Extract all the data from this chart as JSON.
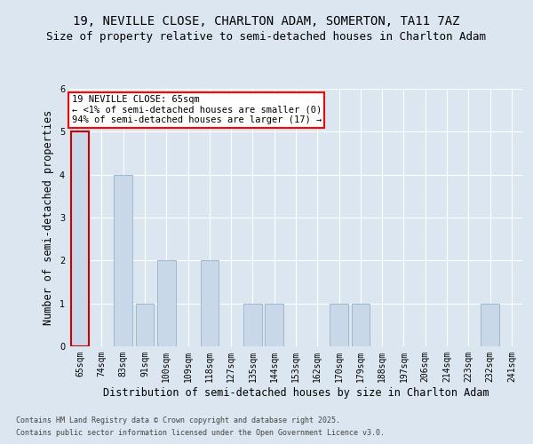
{
  "title_line1": "19, NEVILLE CLOSE, CHARLTON ADAM, SOMERTON, TA11 7AZ",
  "title_line2": "Size of property relative to semi-detached houses in Charlton Adam",
  "categories": [
    "65sqm",
    "74sqm",
    "83sqm",
    "91sqm",
    "100sqm",
    "109sqm",
    "118sqm",
    "127sqm",
    "135sqm",
    "144sqm",
    "153sqm",
    "162sqm",
    "170sqm",
    "179sqm",
    "188sqm",
    "197sqm",
    "206sqm",
    "214sqm",
    "223sqm",
    "232sqm",
    "241sqm"
  ],
  "values": [
    5,
    0,
    4,
    1,
    2,
    0,
    2,
    0,
    1,
    1,
    0,
    0,
    1,
    1,
    0,
    0,
    0,
    0,
    0,
    1,
    0
  ],
  "bar_color": "#c8d8e8",
  "bar_edge_color": "#a0b8cc",
  "highlight_index": 0,
  "highlight_edge_color": "#cc0000",
  "xlabel": "Distribution of semi-detached houses by size in Charlton Adam",
  "ylabel": "Number of semi-detached properties",
  "ylim": [
    0,
    6
  ],
  "yticks": [
    0,
    1,
    2,
    3,
    4,
    5,
    6
  ],
  "annotation_box_text": "19 NEVILLE CLOSE: 65sqm\n← <1% of semi-detached houses are smaller (0)\n94% of semi-detached houses are larger (17) →",
  "bg_color": "#dce6f0",
  "plot_bg_color": "#dce6f0",
  "footer_line1": "Contains HM Land Registry data © Crown copyright and database right 2025.",
  "footer_line2": "Contains public sector information licensed under the Open Government Licence v3.0.",
  "grid_color": "#ffffff",
  "title_fontsize": 10,
  "subtitle_fontsize": 9,
  "tick_fontsize": 7,
  "label_fontsize": 8.5,
  "footer_fontsize": 6,
  "ann_fontsize": 7.5
}
